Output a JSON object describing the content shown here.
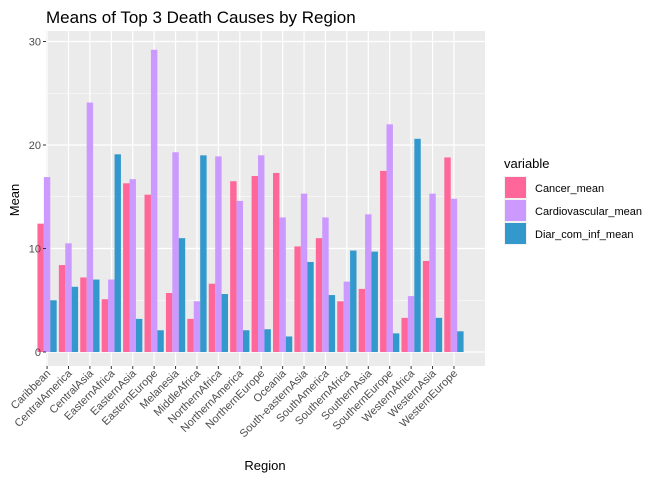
{
  "chart_data": {
    "type": "bar",
    "title": "Means of Top 3 Death Causes by Region",
    "xlabel": "Region",
    "ylabel": "Mean",
    "ylim": [
      0,
      30
    ],
    "yticks": [
      0,
      10,
      20,
      30
    ],
    "grid": true,
    "legend_title": "variable",
    "legend_position": "right",
    "categories": [
      "Caribbean",
      "CentralAmerica",
      "CentralAsia",
      "EasternAfrica",
      "EasternAsia",
      "EasternEurope",
      "Melanesia",
      "MiddleAfrica",
      "NorthernAfrica",
      "NorthernAmerica",
      "NorthernEurope",
      "Oceania",
      "South-easternAsia",
      "SouthAmerica",
      "SouthernAfrica",
      "SouthernAsia",
      "SouthernEurope",
      "WesternAfrica",
      "WesternAsia",
      "WesternEurope"
    ],
    "series": [
      {
        "name": "Cancer_mean",
        "color": "#ff6699",
        "values": [
          12.4,
          8.4,
          7.2,
          5.1,
          16.3,
          15.2,
          5.7,
          3.2,
          6.6,
          16.5,
          17.0,
          17.3,
          10.2,
          11.0,
          4.9,
          6.1,
          17.5,
          3.3,
          8.8,
          18.8
        ]
      },
      {
        "name": "Cardiovascular_mean",
        "color": "#cc99ff",
        "values": [
          16.9,
          10.5,
          24.1,
          7.0,
          16.7,
          29.2,
          19.3,
          4.9,
          18.9,
          14.6,
          19.0,
          13.0,
          15.3,
          13.0,
          6.8,
          13.3,
          22.0,
          5.4,
          15.3,
          14.8
        ]
      },
      {
        "name": "Diar_com_inf_mean",
        "color": "#3399cc",
        "values": [
          5.0,
          6.3,
          7.0,
          19.1,
          3.2,
          2.1,
          11.0,
          19.0,
          5.6,
          2.1,
          2.2,
          1.5,
          8.7,
          5.5,
          9.8,
          9.7,
          1.8,
          20.6,
          3.3,
          2.0
        ]
      }
    ]
  }
}
